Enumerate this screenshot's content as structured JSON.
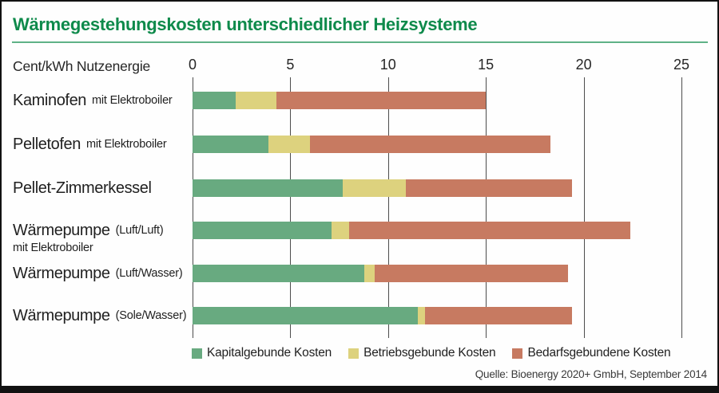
{
  "chart": {
    "title": "Wärmegestehungskosten unterschiedlicher Heizsysteme",
    "unit_label": "Cent/kWh Nutzenergie",
    "source": "Quelle: Bioenergy 2020+ GmbH, September 2014"
  },
  "chart_data": {
    "type": "bar",
    "orientation": "horizontal",
    "stacked": true,
    "title": "Wärmegestehungskosten unterschiedlicher Heizsysteme",
    "xlabel": "Cent/kWh Nutzenergie",
    "xlim": [
      0,
      25
    ],
    "xticks": [
      0,
      5,
      10,
      15,
      20,
      25
    ],
    "grid": "vertical",
    "legend_position": "bottom",
    "categories": [
      "Kaminofen mit Elektroboiler",
      "Pelletofen mit Elektroboiler",
      "Pellet-Zimmerkessel",
      "Wärmepumpe (Luft/Luft) mit Elektroboiler",
      "Wärmepumpe (Luft/Wasser)",
      "Wärmepumpe (Sole/Wasser)"
    ],
    "rows": [
      {
        "label": "Kaminofen",
        "sublabel": "mit Elektroboiler",
        "sublabel2": "",
        "total": 15.0
      },
      {
        "label": "Pelletofen",
        "sublabel": "mit Elektroboiler",
        "sublabel2": "",
        "total": 18.3
      },
      {
        "label": "Pellet-Zimmerkessel",
        "sublabel": "",
        "sublabel2": "",
        "total": 19.4
      },
      {
        "label": "Wärmepumpe",
        "sublabel": "(Luft/Luft)",
        "sublabel2": "mit Elektroboiler",
        "total": 22.4
      },
      {
        "label": "Wärmepumpe",
        "sublabel": "(Luft/Wasser)",
        "sublabel2": "",
        "total": 19.2
      },
      {
        "label": "Wärmepumpe",
        "sublabel": "(Sole/Wasser)",
        "sublabel2": "",
        "total": 19.4
      }
    ],
    "series": [
      {
        "name": "Kapitalgebunde Kosten",
        "color": "#68aa80",
        "values": [
          2.2,
          3.9,
          7.7,
          7.1,
          8.8,
          11.5
        ]
      },
      {
        "name": "Betriebsgebunde Kosten",
        "color": "#ddd27e",
        "values": [
          2.1,
          2.1,
          3.2,
          0.9,
          0.5,
          0.4
        ]
      },
      {
        "name": "Bedarfsgebundene Kosten",
        "color": "#c77a61",
        "values": [
          10.7,
          12.3,
          8.5,
          14.4,
          9.9,
          7.5
        ]
      }
    ],
    "colors": {
      "title_green": "#0e8a4b",
      "gridline": "#4d4d4d",
      "text": "#212121"
    }
  }
}
